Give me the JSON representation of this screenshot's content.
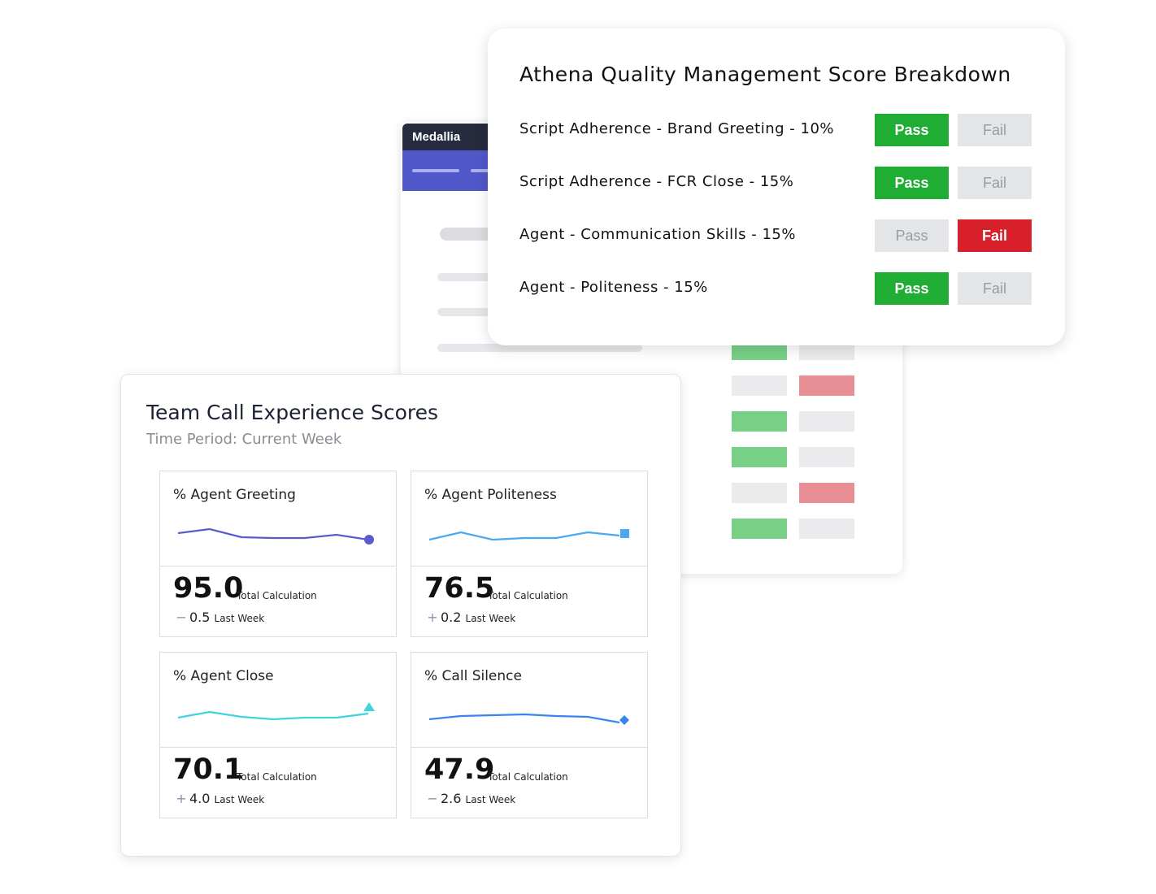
{
  "background_card": {
    "brand": "Medallia",
    "grid_rows": [
      [
        "pass",
        "off"
      ],
      [
        "off",
        "fail"
      ],
      [
        "pass",
        "off"
      ],
      [
        "pass",
        "off"
      ],
      [
        "off",
        "fail"
      ],
      [
        "pass",
        "off"
      ]
    ]
  },
  "breakdown": {
    "title": "Athena Quality Management Score Breakdown",
    "criteria": [
      {
        "label": "Script Adherence - Brand Greeting - 10%",
        "pass": "Pass",
        "fail": "Fail",
        "result": "pass"
      },
      {
        "label": "Script Adherence - FCR Close - 15%",
        "pass": "Pass",
        "fail": "Fail",
        "result": "pass"
      },
      {
        "label": "Agent  - Communication Skills - 15%",
        "pass": "Pass",
        "fail": "Fail",
        "result": "fail"
      },
      {
        "label": "Agent  - Politeness - 15%",
        "pass": "Pass",
        "fail": "Fail",
        "result": "pass"
      }
    ],
    "colors": {
      "pass": "#1fae33",
      "fail": "#d8202a",
      "off": "#e4e5e7"
    }
  },
  "team": {
    "title": "Team Call Experience Scores",
    "subtitle": "Time Period: Current Week",
    "tiles": [
      {
        "title": "% Agent Greeting",
        "value": "95.0",
        "value_label": "Total Calculation",
        "change_sign": "−",
        "change": "0.5",
        "change_label": "Last Week",
        "color": "#5a5ccc",
        "marker": "circle"
      },
      {
        "title": "% Agent Politeness",
        "value": "76.5",
        "value_label": "Total Calculation",
        "change_sign": "+",
        "change": "0.2",
        "change_label": "Last Week",
        "color": "#4aa8f0",
        "marker": "square"
      },
      {
        "title": "% Agent Close",
        "value": "70.1",
        "value_label": "Total Calculation",
        "change_sign": "+",
        "change": "4.0",
        "change_label": "Last Week",
        "color": "#3fd3da",
        "marker": "triangle"
      },
      {
        "title": "% Call Silence",
        "value": "47.9",
        "value_label": "Total Calculation",
        "change_sign": "−",
        "change": "2.6",
        "change_label": "Last Week",
        "color": "#3a84f0",
        "marker": "diamond"
      }
    ]
  }
}
